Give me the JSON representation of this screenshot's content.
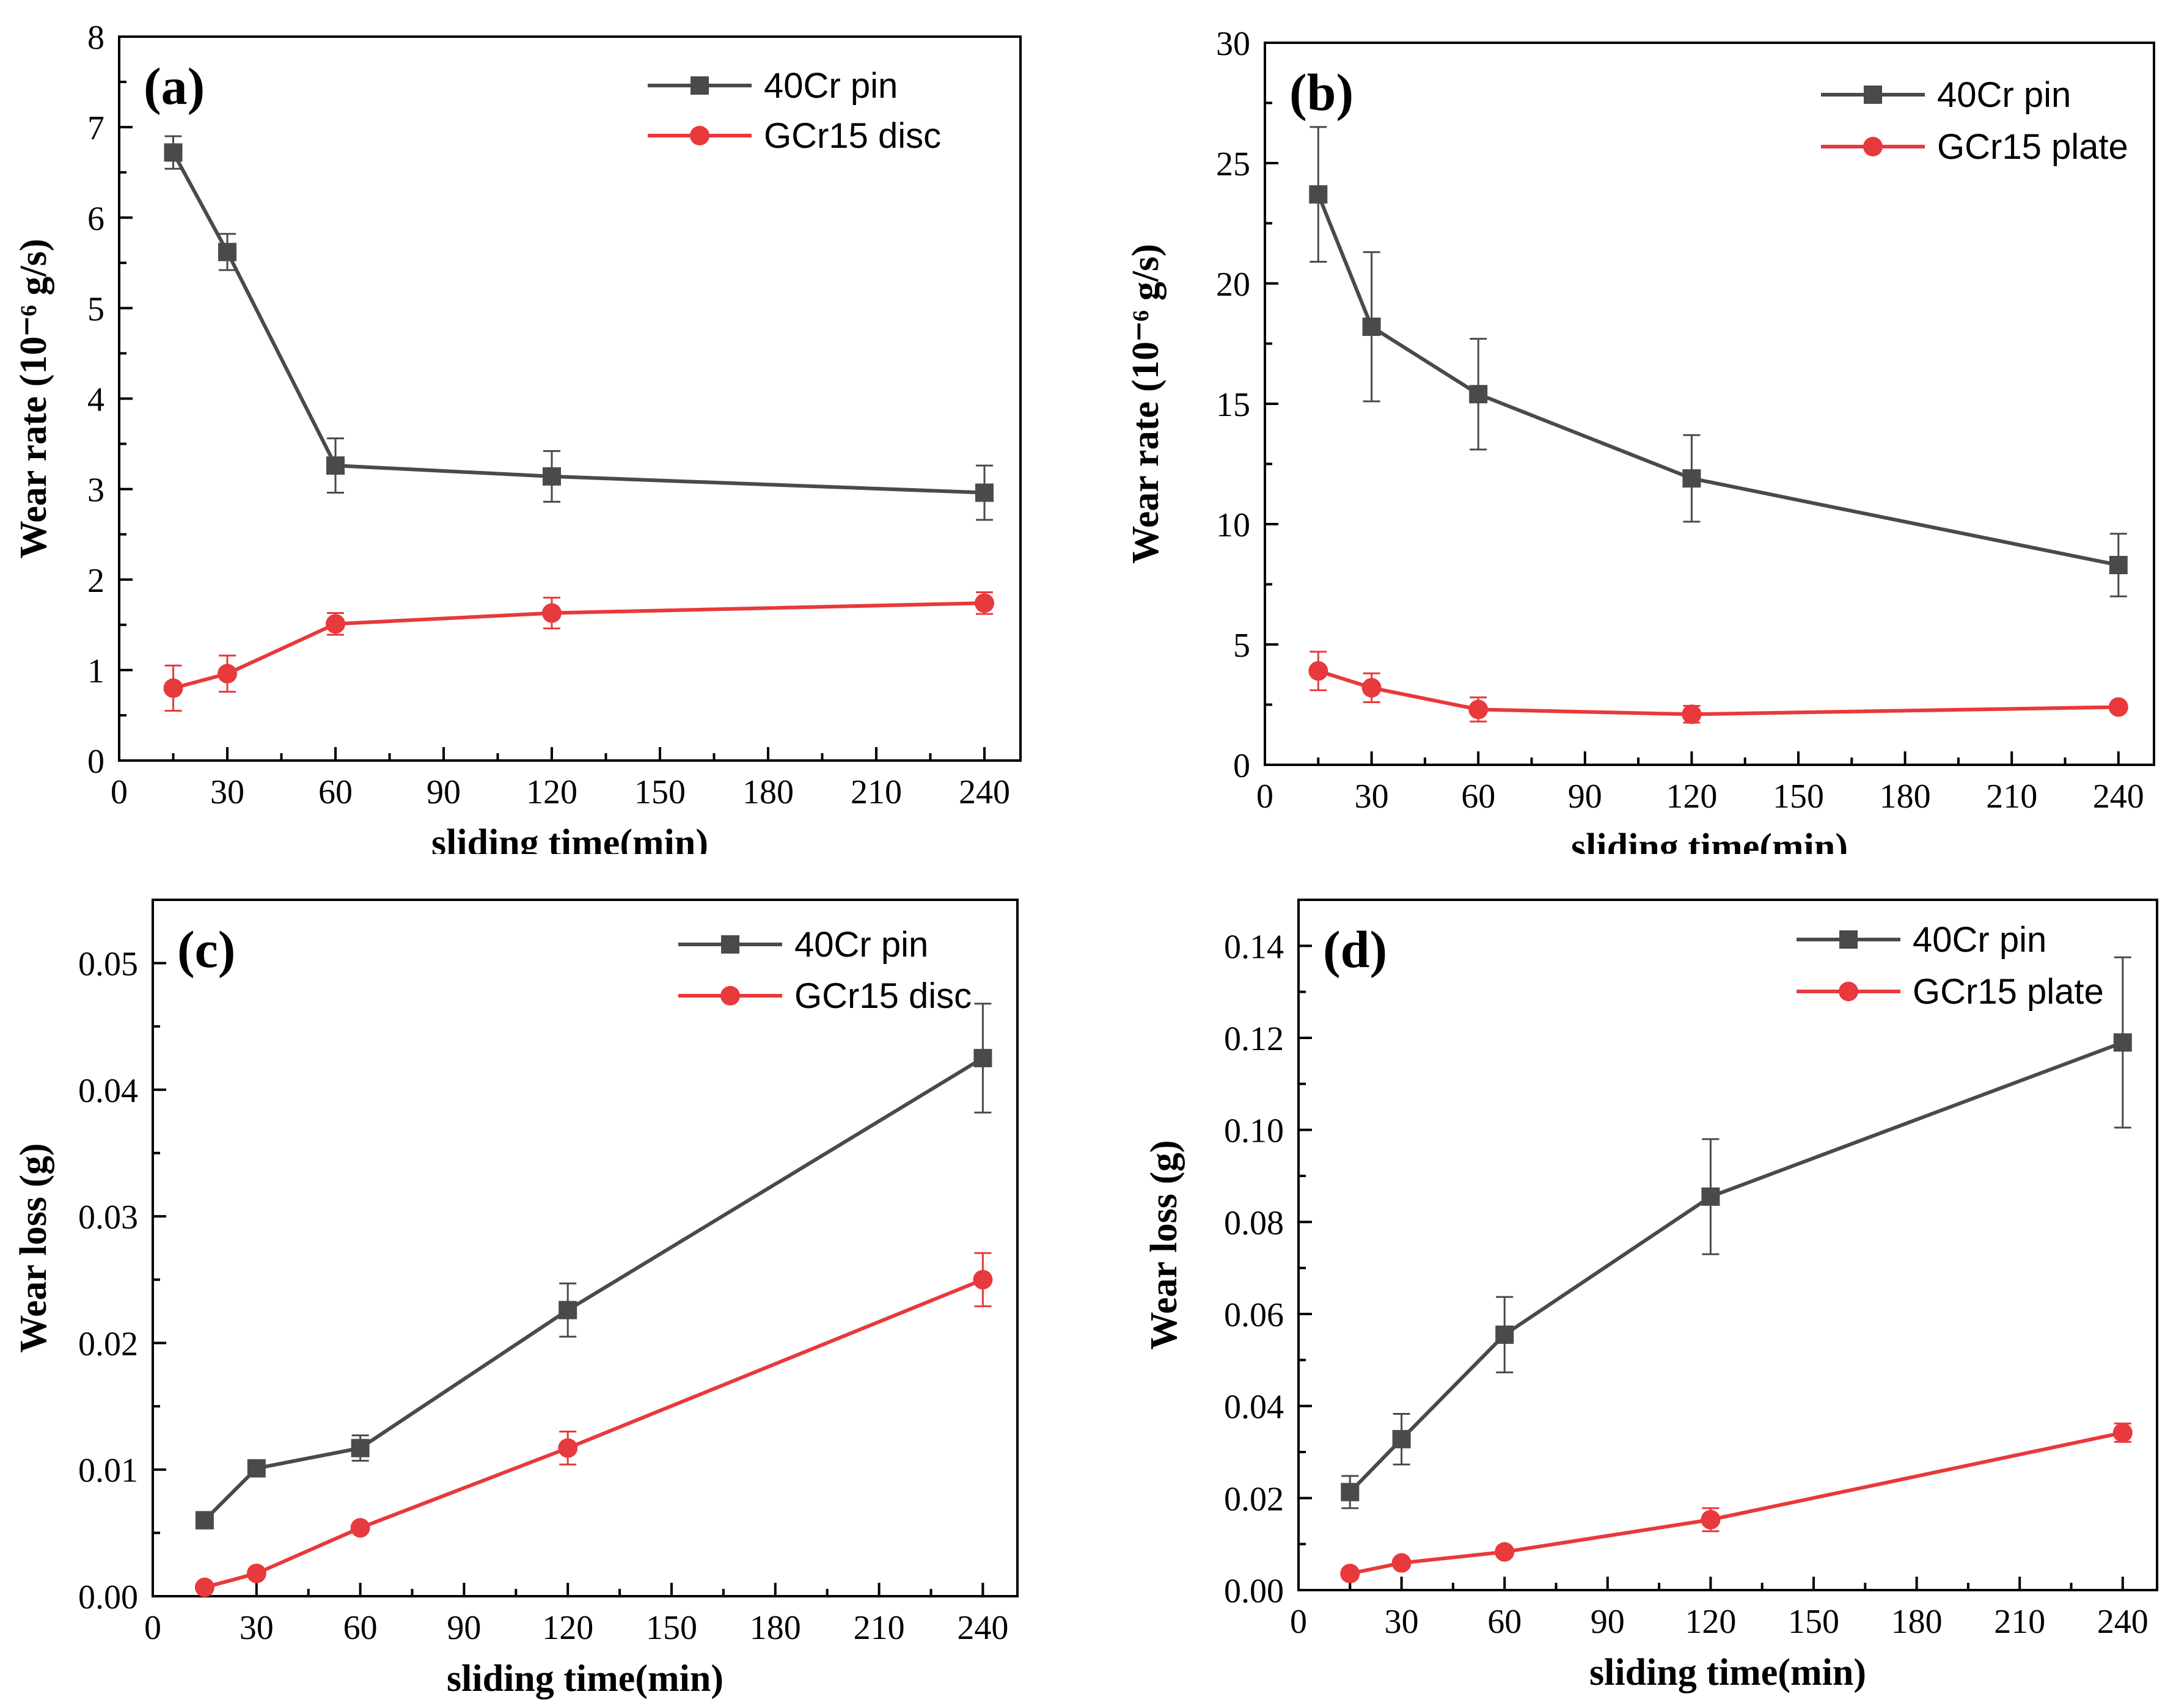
{
  "chart_data": [
    {
      "type": "line",
      "panel_label": "(a)",
      "xlabel": "sliding time(min)",
      "ylabel": "Wear rate (10⁻⁶ g/s)",
      "xlim": [
        0,
        250
      ],
      "ylim": [
        0,
        8
      ],
      "xticks": [
        0,
        30,
        60,
        90,
        120,
        150,
        180,
        210,
        240
      ],
      "yticks": [
        0,
        1,
        2,
        3,
        4,
        5,
        6,
        7,
        8
      ],
      "ytick_labels": [
        "0",
        "1",
        "2",
        "3",
        "4",
        "5",
        "6",
        "7",
        "8"
      ],
      "legend_position": "top-right",
      "series": [
        {
          "name": "40Cr pin",
          "color": "#4a4a4a",
          "marker": "square",
          "x": [
            15,
            30,
            60,
            120,
            240
          ],
          "values": [
            6.72,
            5.62,
            3.26,
            3.14,
            2.96
          ],
          "errors": [
            0.18,
            0.2,
            0.3,
            0.28,
            0.3
          ]
        },
        {
          "name": "GCr15 disc",
          "color": "#e8393c",
          "marker": "circle",
          "x": [
            15,
            30,
            60,
            120,
            240
          ],
          "values": [
            0.8,
            0.96,
            1.51,
            1.63,
            1.74
          ],
          "errors": [
            0.25,
            0.2,
            0.12,
            0.17,
            0.12
          ]
        }
      ]
    },
    {
      "type": "line",
      "panel_label": "(b)",
      "xlabel": "sliding time(min)",
      "ylabel": "Wear rate (10⁻⁶ g/s)",
      "xlim": [
        0,
        250
      ],
      "ylim": [
        0,
        30
      ],
      "xticks": [
        0,
        30,
        60,
        90,
        120,
        150,
        180,
        210,
        240
      ],
      "yticks": [
        0,
        5,
        10,
        15,
        20,
        25,
        30
      ],
      "ytick_labels": [
        "0",
        "5",
        "10",
        "15",
        "20",
        "25",
        "30"
      ],
      "legend_position": "top-right",
      "series": [
        {
          "name": "40Cr pin",
          "color": "#4a4a4a",
          "marker": "square",
          "x": [
            15,
            30,
            60,
            120,
            240
          ],
          "values": [
            23.7,
            18.2,
            15.4,
            11.9,
            8.3
          ],
          "errors": [
            2.8,
            3.1,
            2.3,
            1.8,
            1.3
          ]
        },
        {
          "name": "GCr15 plate",
          "color": "#e8393c",
          "marker": "circle",
          "x": [
            15,
            30,
            60,
            120,
            240
          ],
          "values": [
            3.9,
            3.2,
            2.3,
            2.1,
            2.4
          ],
          "errors": [
            0.8,
            0.6,
            0.5,
            0.35,
            0.15
          ]
        }
      ]
    },
    {
      "type": "line",
      "panel_label": "(c)",
      "xlabel": "sliding time(min)",
      "ylabel": "Wear loss (g)",
      "xlim": [
        0,
        250
      ],
      "ylim": [
        0,
        0.055
      ],
      "xticks": [
        0,
        30,
        60,
        90,
        120,
        150,
        180,
        210,
        240
      ],
      "yticks": [
        0,
        0.01,
        0.02,
        0.03,
        0.04,
        0.05
      ],
      "ytick_labels": [
        "0.00",
        "0.01",
        "0.02",
        "0.03",
        "0.04",
        "0.05"
      ],
      "legend_position": "top-right",
      "series": [
        {
          "name": "40Cr pin",
          "color": "#4a4a4a",
          "marker": "square",
          "x": [
            15,
            30,
            60,
            120,
            240
          ],
          "values": [
            0.006,
            0.0101,
            0.0117,
            0.0226,
            0.0425
          ],
          "errors": [
            0.0003,
            0.0003,
            0.001,
            0.0021,
            0.0043
          ]
        },
        {
          "name": "GCr15 disc",
          "color": "#e8393c",
          "marker": "circle",
          "x": [
            15,
            30,
            60,
            120,
            240
          ],
          "values": [
            0.0007,
            0.0018,
            0.0054,
            0.0117,
            0.025
          ],
          "errors": [
            0.0002,
            0.0002,
            0.0003,
            0.0013,
            0.0021
          ]
        }
      ]
    },
    {
      "type": "line",
      "panel_label": "(d)",
      "xlabel": "sliding time(min)",
      "ylabel": "Wear loss (g)",
      "xlim": [
        0,
        250
      ],
      "ylim": [
        0,
        0.15
      ],
      "xticks": [
        0,
        30,
        60,
        90,
        120,
        150,
        180,
        210,
        240
      ],
      "yticks": [
        0,
        0.02,
        0.04,
        0.06,
        0.08,
        0.1,
        0.12,
        0.14
      ],
      "ytick_labels": [
        "0.00",
        "0.02",
        "0.04",
        "0.06",
        "0.08",
        "0.10",
        "0.12",
        "0.14"
      ],
      "legend_position": "top-right",
      "series": [
        {
          "name": "40Cr pin",
          "color": "#4a4a4a",
          "marker": "square",
          "x": [
            15,
            30,
            60,
            120,
            240
          ],
          "values": [
            0.0213,
            0.0328,
            0.0555,
            0.0855,
            0.119
          ],
          "errors": [
            0.0035,
            0.0055,
            0.0082,
            0.0125,
            0.0185
          ]
        },
        {
          "name": "GCr15 plate",
          "color": "#e8393c",
          "marker": "circle",
          "x": [
            15,
            30,
            60,
            120,
            240
          ],
          "values": [
            0.0036,
            0.0059,
            0.0083,
            0.0153,
            0.0342
          ],
          "errors": [
            0.0005,
            0.0005,
            0.0005,
            0.0025,
            0.002
          ]
        }
      ]
    }
  ]
}
